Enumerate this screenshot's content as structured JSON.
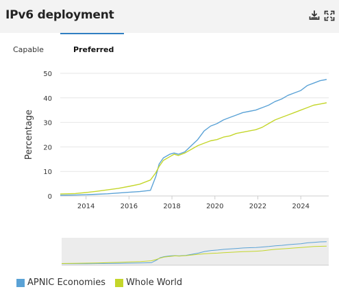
{
  "header": {
    "title": "IPv6 deployment",
    "icons": [
      "download-icon",
      "fullscreen-icon"
    ]
  },
  "tabs": [
    {
      "label": "Capable",
      "active": false
    },
    {
      "label": "Preferred",
      "active": true
    }
  ],
  "colors": {
    "accent": "#2f7ec2",
    "apnic": "#5aa2d6",
    "world": "#c4d62a",
    "grid": "#e6e6e6",
    "navigator_bg": "#ececec"
  },
  "chart_data": {
    "type": "line",
    "title": "",
    "xlabel": "",
    "ylabel": "Percentage",
    "xlim": [
      2012.8,
      2025.3
    ],
    "ylim": [
      0,
      50
    ],
    "x_ticks": [
      "2014",
      "2016",
      "2018",
      "2020",
      "2022",
      "2024"
    ],
    "y_ticks": [
      "0",
      "10",
      "20",
      "30",
      "40",
      "50"
    ],
    "grid": true,
    "legend_position": "bottom-left",
    "x": [
      2012.8,
      2013.5,
      2014.0,
      2014.5,
      2015.0,
      2015.5,
      2016.0,
      2016.5,
      2017.0,
      2017.25,
      2017.4,
      2017.6,
      2017.9,
      2018.1,
      2018.3,
      2018.6,
      2018.9,
      2019.2,
      2019.5,
      2019.8,
      2020.1,
      2020.4,
      2020.7,
      2021.0,
      2021.3,
      2021.6,
      2021.9,
      2022.2,
      2022.5,
      2022.8,
      2023.1,
      2023.4,
      2023.7,
      2024.0,
      2024.3,
      2024.6,
      2024.9,
      2025.2
    ],
    "series": [
      {
        "name": "APNIC Economies",
        "values": [
          0.3,
          0.4,
          0.5,
          0.7,
          0.9,
          1.2,
          1.5,
          1.8,
          2.3,
          8.0,
          13.0,
          15.5,
          17.0,
          17.5,
          17.0,
          18.0,
          20.5,
          23.0,
          26.5,
          28.5,
          29.5,
          31.0,
          32.0,
          33.0,
          34.0,
          34.5,
          35.0,
          36.0,
          37.0,
          38.5,
          39.5,
          41.0,
          42.0,
          43.0,
          45.0,
          46.0,
          47.0,
          47.5
        ]
      },
      {
        "name": "Whole World",
        "values": [
          0.8,
          1.0,
          1.4,
          1.9,
          2.5,
          3.1,
          3.9,
          4.8,
          6.5,
          9.5,
          12.0,
          14.5,
          16.0,
          17.0,
          16.5,
          17.5,
          19.0,
          20.5,
          21.5,
          22.5,
          23.0,
          24.0,
          24.5,
          25.5,
          26.0,
          26.5,
          27.0,
          28.0,
          29.5,
          31.0,
          32.0,
          33.0,
          34.0,
          35.0,
          36.0,
          37.0,
          37.5,
          38.0
        ]
      }
    ]
  }
}
